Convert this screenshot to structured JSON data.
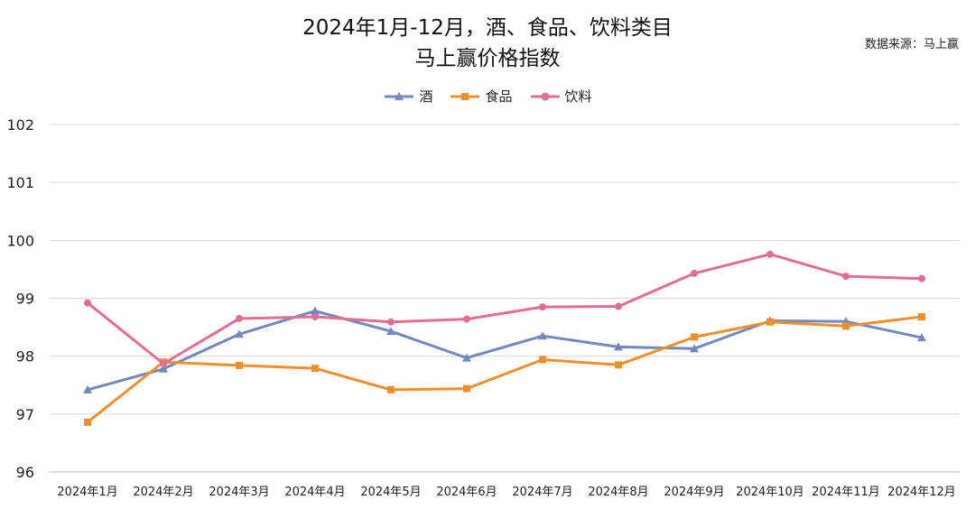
{
  "source": "数据来源：马上赢",
  "colors": {
    "jiu": "#7189bf",
    "shipin": "#ef8f2e",
    "yinliao": "#e26d95",
    "grid": "#d9d9d9"
  },
  "chart_data": {
    "type": "line",
    "title": [
      "2024年1月-12月，酒、食品、饮料类目",
      "马上赢价格指数"
    ],
    "xlabel": "",
    "ylabel": "",
    "ylim": [
      96,
      102
    ],
    "yticks": [
      "96",
      "97",
      "98",
      "99",
      "100",
      "101",
      "102"
    ],
    "grid": "horizontal",
    "legend": "top-center",
    "categories": [
      "2024年1月",
      "2024年2月",
      "2024年3月",
      "2024年4月",
      "2024年5月",
      "2024年6月",
      "2024年7月",
      "2024年8月",
      "2024年9月",
      "2024年10月",
      "2024年11月",
      "2024年12月"
    ],
    "series": [
      {
        "name": "酒",
        "marker": "triangle",
        "color": "#7189bf",
        "values": [
          97.42,
          97.78,
          98.38,
          98.78,
          98.43,
          97.97,
          98.35,
          98.16,
          98.13,
          98.61,
          98.6,
          98.32
        ]
      },
      {
        "name": "食品",
        "marker": "square",
        "color": "#ef8f2e",
        "values": [
          96.86,
          97.9,
          97.84,
          97.79,
          97.42,
          97.44,
          97.94,
          97.85,
          98.33,
          98.59,
          98.52,
          98.68
        ]
      },
      {
        "name": "饮料",
        "marker": "circle",
        "color": "#e26d95",
        "values": [
          98.92,
          97.87,
          98.65,
          98.68,
          98.59,
          98.64,
          98.85,
          98.86,
          99.43,
          99.76,
          99.38,
          99.34
        ]
      }
    ]
  }
}
